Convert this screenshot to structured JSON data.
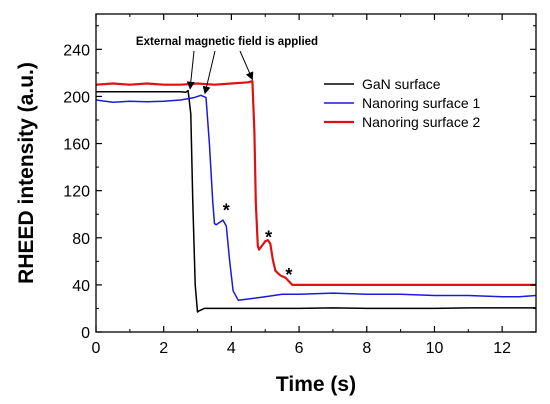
{
  "chart_data": {
    "type": "line",
    "xlabel": "Time (s)",
    "ylabel": "RHEED intensity (a.u.)",
    "xlim": [
      0,
      13
    ],
    "ylim": [
      0,
      270
    ],
    "xticks": [
      "0",
      "2",
      "4",
      "6",
      "8",
      "10",
      "12"
    ],
    "yticks": [
      "0",
      "40",
      "80",
      "120",
      "160",
      "200",
      "240"
    ],
    "grid": false,
    "legend_position": "top-right",
    "annotation": {
      "text": "External magnetic field is applied",
      "arrow_targets": [
        [
          2.78,
          204
        ],
        [
          3.22,
          200
        ],
        [
          4.62,
          212
        ]
      ]
    },
    "markers": [
      {
        "text": "*",
        "x": 3.85,
        "y": 105
      },
      {
        "text": "*",
        "x": 5.1,
        "y": 82
      },
      {
        "text": "*",
        "x": 5.7,
        "y": 50
      }
    ],
    "series": [
      {
        "name": "GaN surface",
        "color": "#000000",
        "x": [
          0,
          0.5,
          1.0,
          1.5,
          2.0,
          2.5,
          2.65,
          2.72,
          2.8,
          2.86,
          2.93,
          3.0,
          3.05,
          3.2,
          3.5,
          4.0,
          5.0,
          6.0,
          7.0,
          8.0,
          9.0,
          10.0,
          11.0,
          12.0,
          13.0
        ],
        "y": [
          204,
          204,
          204,
          204,
          204,
          204,
          203.5,
          205,
          185,
          110,
          40,
          17,
          18,
          20,
          20,
          20,
          20,
          20,
          20.5,
          20,
          20,
          20,
          20.5,
          20.5,
          20.5
        ]
      },
      {
        "name": "Nanoring surface 1",
        "color": "#1a1adc",
        "x": [
          0,
          0.5,
          1.0,
          1.5,
          2.0,
          2.5,
          2.9,
          3.1,
          3.25,
          3.35,
          3.45,
          3.5,
          3.55,
          3.65,
          3.75,
          3.85,
          3.95,
          4.05,
          4.2,
          4.5,
          5.0,
          5.5,
          6.0,
          7.0,
          8.0,
          9.0,
          10.0,
          11.0,
          12.0,
          12.5,
          13.0
        ],
        "y": [
          197,
          195,
          196,
          195.5,
          196,
          197,
          199,
          201,
          199,
          160,
          110,
          92,
          91,
          93,
          95,
          90,
          60,
          35,
          27,
          28,
          30,
          32,
          32,
          33,
          32,
          32,
          31,
          31,
          30,
          30,
          31
        ]
      },
      {
        "name": "Nanoring surface 2",
        "color": "#e01010",
        "x": [
          0,
          0.5,
          1.0,
          1.5,
          2.0,
          2.5,
          3.0,
          3.5,
          4.0,
          4.5,
          4.62,
          4.68,
          4.72,
          4.78,
          4.82,
          4.9,
          5.0,
          5.08,
          5.15,
          5.22,
          5.3,
          5.45,
          5.6,
          5.8,
          6.0,
          7.0,
          8.0,
          9.0,
          10.0,
          11.0,
          12.0,
          13.0
        ],
        "y": [
          210,
          211,
          210,
          211,
          210,
          210,
          211,
          210,
          211,
          212,
          213,
          170,
          110,
          73,
          70,
          73,
          77,
          78,
          75,
          62,
          52,
          48,
          46,
          40,
          40,
          40,
          40,
          40,
          40,
          40,
          40,
          40
        ]
      }
    ]
  }
}
